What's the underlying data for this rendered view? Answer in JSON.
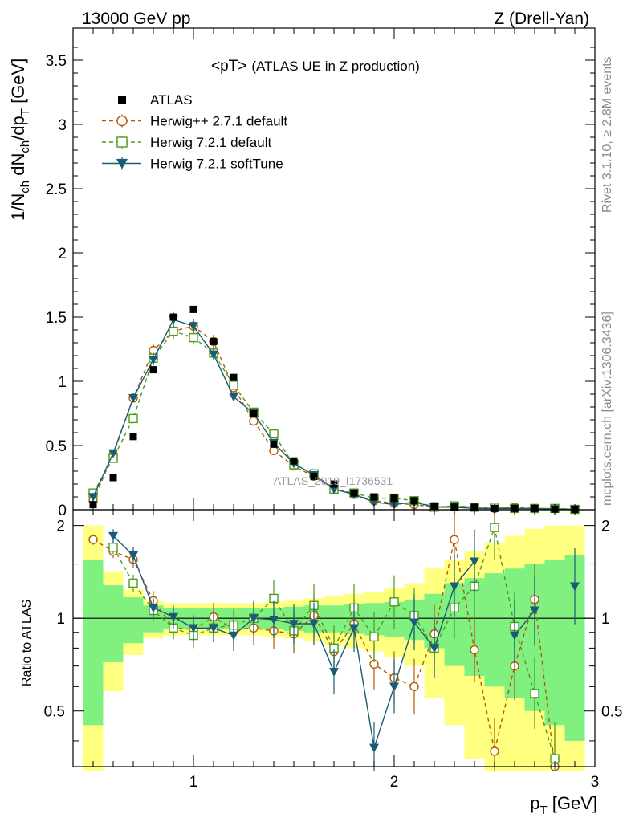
{
  "header": {
    "left": "13000 GeV pp",
    "right": "Z (Drell-Yan)"
  },
  "side_labels": {
    "rivet": "Rivet 3.1.10, ≥ 2.8M events",
    "mcplots": "mcplots.cern.ch [arXiv:1306.3436]"
  },
  "watermark": "ATLAS_2019_I1736531",
  "chart_data": {
    "type": "scatter",
    "title": "<pT> (ATLAS UE in Z production)",
    "title_main": "<pT>",
    "title_sub": "(ATLAS UE in Z production)",
    "ylabel": "1/N_ch dN_ch/dp_T [GeV]",
    "xlabel": "p_T [GeV]",
    "ratio_ylabel": "Ratio to ATLAS",
    "xlim": [
      0.4,
      3.0
    ],
    "ylim": [
      0,
      3.75
    ],
    "ratio_ylim": [
      0.33,
      2.25
    ],
    "x_ticks": [
      1,
      2,
      3
    ],
    "y_ticks": [
      0,
      0.5,
      1,
      1.5,
      2,
      2.5,
      3,
      3.5
    ],
    "ratio_ticks": [
      0.5,
      1,
      2
    ],
    "x": [
      0.5,
      0.6,
      0.7,
      0.8,
      0.9,
      1.0,
      1.1,
      1.2,
      1.3,
      1.4,
      1.5,
      1.6,
      1.7,
      1.8,
      1.9,
      2.0,
      2.1,
      2.2,
      2.3,
      2.4,
      2.5,
      2.6,
      2.7,
      2.8,
      2.9
    ],
    "data": {
      "name": "ATLAS",
      "values": [
        0.04,
        0.25,
        0.57,
        1.09,
        1.5,
        1.56,
        1.31,
        1.03,
        0.75,
        0.51,
        0.38,
        0.26,
        0.2,
        0.13,
        0.1,
        0.09,
        0.07,
        0.03,
        0.02,
        0.02,
        0.01,
        0.01,
        0.01,
        0.005,
        0.003
      ],
      "band_inner": [
        0.55,
        0.28,
        0.17,
        0.1,
        0.08,
        0.08,
        0.08,
        0.08,
        0.08,
        0.08,
        0.09,
        0.1,
        0.1,
        0.11,
        0.12,
        0.13,
        0.15,
        0.2,
        0.3,
        0.35,
        0.4,
        0.45,
        0.5,
        0.55,
        0.6
      ],
      "band_outer": [
        1.0,
        0.42,
        0.24,
        0.14,
        0.12,
        0.12,
        0.12,
        0.12,
        0.12,
        0.13,
        0.14,
        0.16,
        0.18,
        0.2,
        0.22,
        0.25,
        0.3,
        0.45,
        0.55,
        0.65,
        0.75,
        0.85,
        0.95,
        1.0,
        1.0
      ]
    },
    "series": [
      {
        "name": "Herwig++ 2.7.1 default",
        "color": "#b35a00",
        "marker": "circle",
        "dashed": true,
        "values": [
          0.07,
          0.43,
          0.87,
          1.24,
          1.39,
          1.43,
          1.31,
          0.95,
          0.69,
          0.46,
          0.34,
          0.26,
          0.16,
          0.12,
          0.07,
          0.05,
          0.04,
          0.02,
          0.03,
          0.02,
          0.01,
          0.02,
          0.01,
          0.01,
          0.003
        ],
        "ratio": [
          1.8,
          1.65,
          1.55,
          1.14,
          0.93,
          0.92,
          1.01,
          0.92,
          0.93,
          0.91,
          0.89,
          1.02,
          0.78,
          0.96,
          0.71,
          0.64,
          0.6,
          0.89,
          1.8,
          0.79,
          0.37,
          0.7,
          1.15,
          0.33,
          null
        ]
      },
      {
        "name": "Herwig 7.2.1 default",
        "color": "#4d9a1a",
        "marker": "square",
        "dashed": true,
        "values": [
          0.13,
          0.4,
          0.71,
          1.18,
          1.39,
          1.34,
          1.22,
          0.97,
          0.76,
          0.59,
          0.35,
          0.28,
          0.16,
          0.13,
          0.09,
          0.09,
          0.07,
          0.02,
          0.03,
          0.02,
          0.02,
          0.01,
          0.01,
          0.01,
          0.003
        ],
        "ratio": [
          null,
          1.7,
          1.3,
          1.06,
          0.93,
          0.88,
          0.93,
          0.95,
          1.0,
          1.16,
          0.91,
          1.1,
          0.8,
          1.08,
          0.87,
          1.13,
          1.02,
          0.8,
          1.08,
          1.27,
          1.97,
          0.94,
          0.57,
          0.35,
          null
        ]
      },
      {
        "name": "Herwig 7.2.1 softTune",
        "color": "#1a5c73",
        "marker": "triangle",
        "dashed": false,
        "values": [
          0.1,
          0.44,
          0.87,
          1.17,
          1.48,
          1.43,
          1.21,
          0.88,
          0.75,
          0.52,
          0.36,
          0.27,
          0.16,
          0.12,
          0.06,
          0.04,
          0.06,
          0.02,
          0.02,
          0.01,
          0.01,
          0.01,
          0.01,
          0.005,
          0.003
        ],
        "ratio": [
          null,
          1.85,
          1.6,
          1.08,
          1.01,
          0.93,
          0.93,
          0.88,
          1.0,
          0.99,
          0.96,
          0.96,
          0.67,
          0.93,
          0.38,
          0.6,
          0.97,
          0.8,
          1.27,
          1.53,
          null,
          0.88,
          1.06,
          null,
          1.27
        ]
      }
    ]
  }
}
